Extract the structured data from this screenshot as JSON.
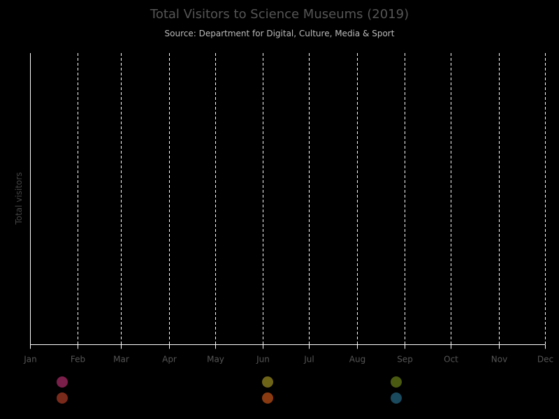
{
  "chart_data": {
    "type": "scatter",
    "title": "Total Visitors to Science Museums (2019)",
    "subtitle": "Source: Department for Digital, Culture, Media & Sport",
    "xlabel": "",
    "ylabel": "Total visitors",
    "x_ticks": [
      "Jan",
      "Feb",
      "Mar",
      "Apr",
      "May",
      "Jun",
      "Jul",
      "Aug",
      "Sep",
      "Oct",
      "Nov",
      "Dec"
    ],
    "x_tick_days": [
      0,
      31,
      59,
      90,
      120,
      151,
      181,
      212,
      243,
      273,
      304,
      334
    ],
    "grid": "vertical-dashed",
    "series_colors": [
      "#7a1f4a",
      "#7a2a1a",
      "#6e6418",
      "#8a3a10",
      "#4a5a10",
      "#1a4a5e"
    ],
    "series": []
  }
}
